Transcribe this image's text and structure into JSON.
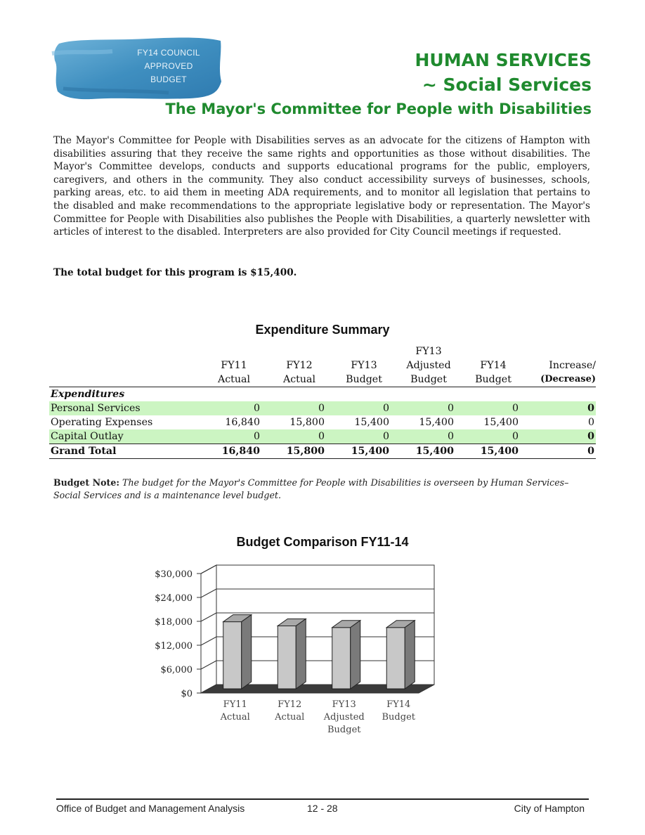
{
  "header": {
    "badge_lines": [
      "FY14 COUNCIL",
      "APPROVED",
      "BUDGET"
    ],
    "department_line1": "HUMAN SERVICES",
    "department_line2": "~ Social Services",
    "program_title": "The Mayor's Committee for People with Disabilities"
  },
  "description": "The Mayor's Committee for People with Disabilities serves as an advocate for the citizens of Hampton with disabilities assuring that they receive the same rights and opportunities as those without disabilities.  The Mayor's Committee develops, conducts and supports educational programs for the public, employers, caregivers, and others in the community. They also conduct accessibility surveys of businesses, schools, parking areas, etc. to aid them in meeting ADA requirements, and to monitor all legislation that pertains to the disabled and make recommendations to the appropriate legislative body or representation. The Mayor's Committee for People with Disabilities also publishes the People with Disabilities, a quarterly newsletter with articles of interest to the disabled.  Interpreters are also provided for City Council meetings if requested.",
  "total_statement": "The total budget for this program is $15,400.",
  "expenditure_summary": {
    "title": "Expenditure Summary",
    "columns": [
      {
        "line1": "",
        "line2": "FY11",
        "line3": "Actual"
      },
      {
        "line1": "",
        "line2": "FY12",
        "line3": "Actual"
      },
      {
        "line1": "",
        "line2": "FY13",
        "line3": "Budget"
      },
      {
        "line1": "FY13",
        "line2": "Adjusted",
        "line3": "Budget"
      },
      {
        "line1": "",
        "line2": "FY14",
        "line3": "Budget"
      },
      {
        "line1": "",
        "line2": "Increase/",
        "line3": "(Decrease)"
      }
    ],
    "section_label": "Expenditures",
    "rows": [
      {
        "label": "Personal Services",
        "values": [
          "0",
          "0",
          "0",
          "0",
          "0",
          "0"
        ]
      },
      {
        "label": "Operating Expenses",
        "values": [
          "16,840",
          "15,800",
          "15,400",
          "15,400",
          "15,400",
          "0"
        ]
      },
      {
        "label": "Capital Outlay",
        "values": [
          "0",
          "0",
          "0",
          "0",
          "0",
          "0"
        ]
      }
    ],
    "grand_total": {
      "label": "Grand Total",
      "values": [
        "16,840",
        "15,800",
        "15,400",
        "15,400",
        "15,400",
        "0"
      ]
    }
  },
  "budget_note": {
    "label": "Budget Note:",
    "text": "The budget for the Mayor's Committee for People with Disabilities is overseen by Human Services–Social Services and is a maintenance level budget."
  },
  "chart_data": {
    "type": "bar",
    "title": "Budget Comparison FY11-14",
    "categories": [
      [
        "FY11",
        "Actual"
      ],
      [
        "FY12",
        "Actual"
      ],
      [
        "FY13",
        "Adjusted",
        "Budget"
      ],
      [
        "FY14",
        "Budget"
      ]
    ],
    "values": [
      16840,
      15800,
      15400,
      15400
    ],
    "ylim": [
      0,
      30000
    ],
    "yticks": [
      0,
      6000,
      12000,
      18000,
      24000,
      30000
    ],
    "ytick_labels": [
      "$0",
      "$6,000",
      "$12,000",
      "$18,000",
      "$24,000",
      "$30,000"
    ],
    "grid": true,
    "style": "3d",
    "bar_color": "#c8c8c8",
    "xlabel": "",
    "ylabel": ""
  },
  "footer": {
    "left": "Office of Budget and Management Analysis",
    "center": "12 - 28",
    "right": "City of Hampton"
  },
  "colors": {
    "accent_green": "#1f8a2e",
    "row_highlight": "#ccf5c2",
    "badge_blue": "#3f8fc0"
  }
}
